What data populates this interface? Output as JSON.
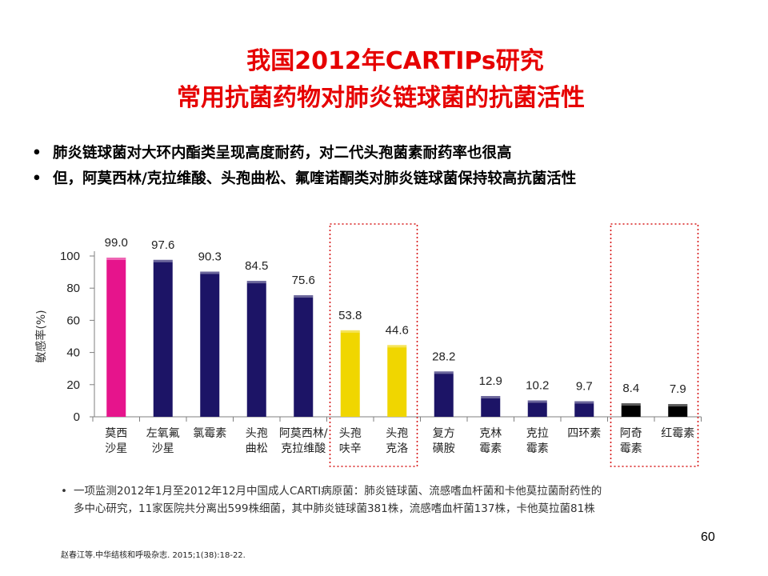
{
  "title": {
    "line1": "我国2012年CARTIPs研究",
    "line2": "常用抗菌药物对肺炎链球菌的抗菌活性"
  },
  "bullets": [
    "肺炎链球菌对大环内酯类呈现高度耐药，对二代头孢菌素耐药率也很高",
    "但，阿莫西林/克拉维酸、头孢曲松、氟喹诺酮类对肺炎链球菌保持较高抗菌活性"
  ],
  "chart_data": {
    "type": "bar",
    "ylabel": "敏感率(%)",
    "xlabel": "",
    "ylim": [
      0,
      100
    ],
    "yticks": [
      0,
      20,
      40,
      60,
      80,
      100
    ],
    "grid": false,
    "legend": "none",
    "categories": [
      [
        "莫西",
        "沙星"
      ],
      [
        "左氧氟",
        "沙星"
      ],
      [
        "氯霉素"
      ],
      [
        "头孢",
        "曲松"
      ],
      [
        "阿莫西林/",
        "克拉维酸"
      ],
      [
        "头孢",
        "呋辛"
      ],
      [
        "头孢",
        "克洛"
      ],
      [
        "复方",
        "磺胺"
      ],
      [
        "克林",
        "霉素"
      ],
      [
        "克拉",
        "霉素"
      ],
      [
        "四环素"
      ],
      [
        "阿奇",
        "霉素"
      ],
      [
        "红霉素"
      ]
    ],
    "values": [
      99.0,
      97.6,
      90.3,
      84.5,
      75.6,
      53.8,
      44.6,
      28.2,
      12.9,
      10.2,
      9.7,
      8.4,
      7.9
    ],
    "value_labels": [
      "99.0",
      "97.6",
      "90.3",
      "84.5",
      "75.6",
      "53.8",
      "44.6",
      "28.2",
      "12.9",
      "10.2",
      "9.7",
      "8.4",
      "7.9"
    ],
    "bar_colors": [
      "#e6148c",
      "#1c1466",
      "#1c1466",
      "#1c1466",
      "#1c1466",
      "#f0d600",
      "#f0d600",
      "#1c1466",
      "#1c1466",
      "#1c1466",
      "#1c1466",
      "#000000",
      "#000000"
    ],
    "highlight_groups": [
      [
        5,
        6
      ],
      [
        11,
        12
      ]
    ],
    "highlight_color": "#d81b1b"
  },
  "footnote": {
    "bullet": "•",
    "line1": "一项监测2012年1月至2012年12月中国成人CARTI病原菌：肺炎链球菌、流感嗜血杆菌和卡他莫拉菌耐药性的",
    "line2": "多中心研究，11家医院共分离出599株细菌，其中肺炎链球菌381株，流感嗜血杆菌137株，卡他莫拉菌81株"
  },
  "page_number": "60",
  "citation": "赵春江等.中华结核和呼吸杂志. 2015;1(38):18-22."
}
